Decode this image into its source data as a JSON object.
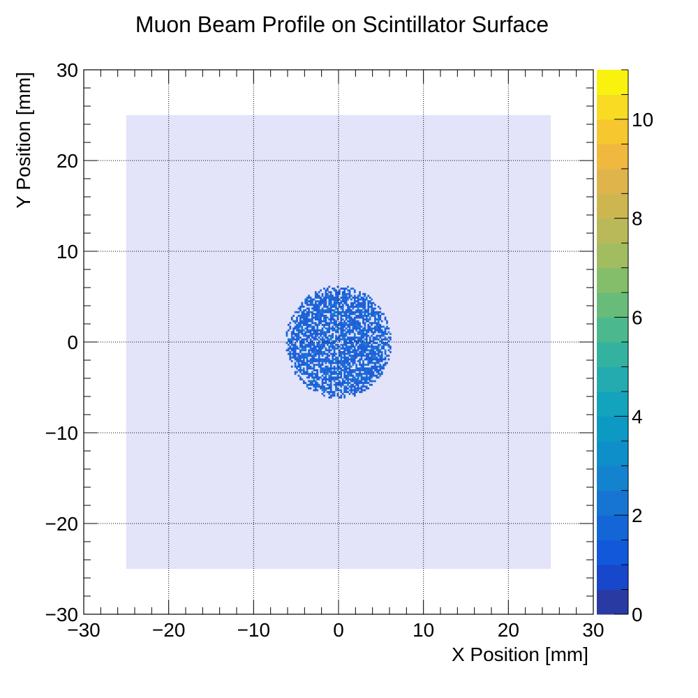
{
  "chart_data": {
    "type": "heatmap",
    "title": "Muon Beam Profile on Scintillator Surface",
    "xlabel": "X Position [mm]",
    "ylabel": "Y Position [mm]",
    "xlim": [
      -30,
      30
    ],
    "ylim": [
      -30,
      30
    ],
    "xticks": [
      "−30",
      "−20",
      "−10",
      "0",
      "10",
      "20",
      "30"
    ],
    "yticks": [
      "−30",
      "−20",
      "−10",
      "0",
      "10",
      "20",
      "30"
    ],
    "grid": true,
    "scintillator_region": {
      "x": [
        -25,
        25
      ],
      "y": [
        -25,
        25
      ],
      "color": "#e3e3fa"
    },
    "beam": {
      "center": [
        0,
        0
      ],
      "radius": 6.2,
      "bin_size": 0.2,
      "typical_counts": [
        1,
        2
      ],
      "colors": {
        "count_1": "#1e5fd8",
        "count_2": "#1a7ad6"
      }
    },
    "colorbar": {
      "zlim": [
        0,
        11
      ],
      "ticks": [
        "0",
        "2",
        "4",
        "6",
        "8",
        "10"
      ],
      "palette": [
        "#2a3aa3",
        "#1747cb",
        "#1258da",
        "#1466d6",
        "#1675d2",
        "#1483cf",
        "#0f8fca",
        "#0c9ac5",
        "#14a3bc",
        "#24abb0",
        "#33b39f",
        "#4bb98d",
        "#68bc79",
        "#84be6a",
        "#a1bd5f",
        "#bab95a",
        "#cdb650",
        "#dfb54b",
        "#f0b83e",
        "#f6c72e",
        "#f8db22",
        "#f9f20f"
      ]
    }
  }
}
